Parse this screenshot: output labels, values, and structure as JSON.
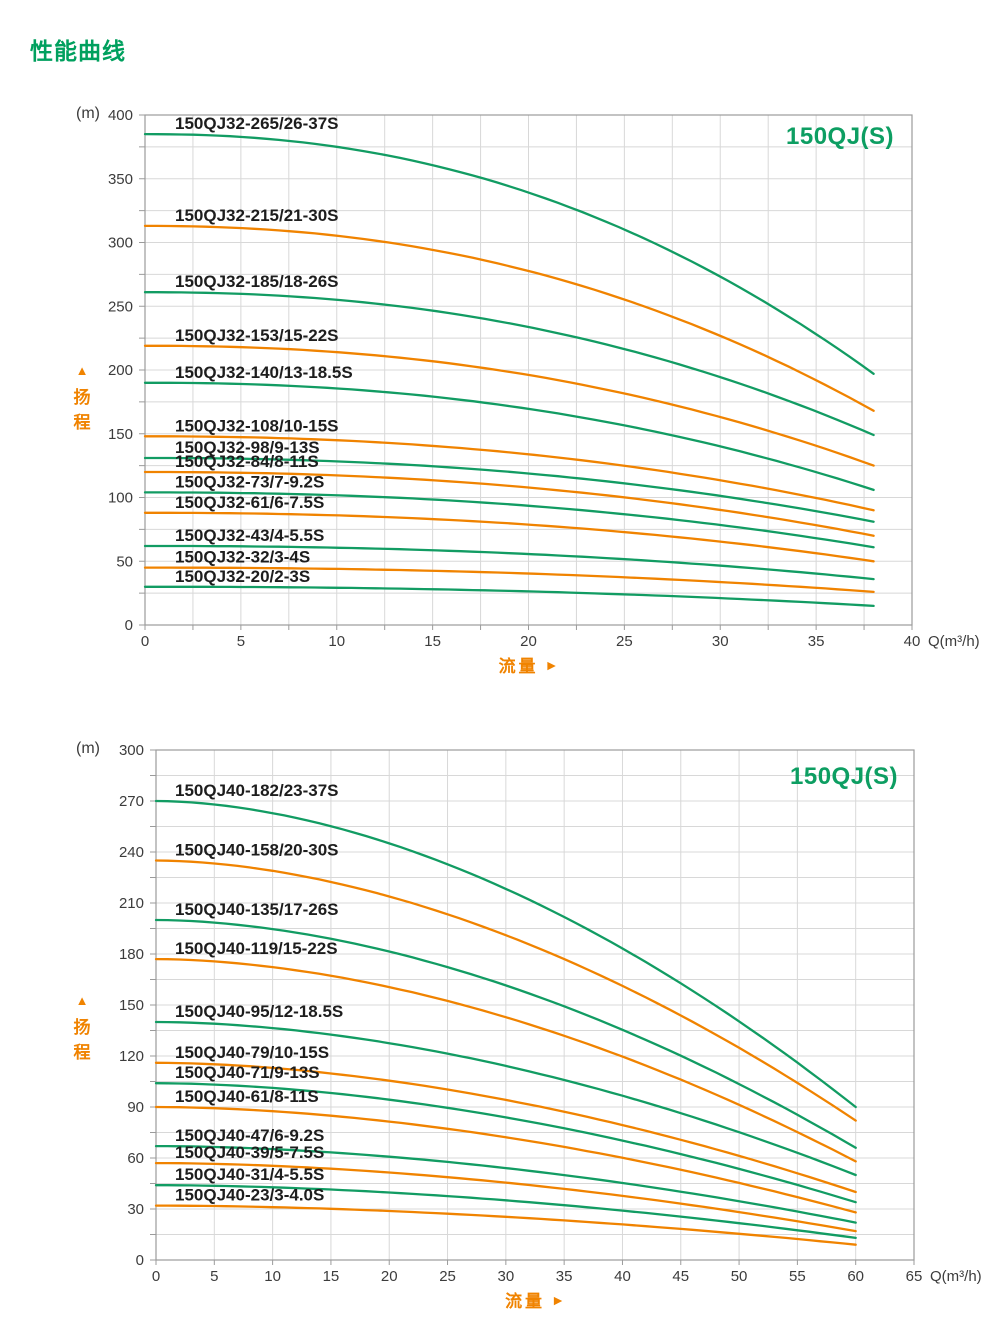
{
  "page": {
    "title": "性能曲线"
  },
  "colors": {
    "green": "#129c63",
    "orange": "#f08300",
    "grid": "#d8d8d8",
    "axis": "#9b9b9b",
    "tick_text": "#3c3c3c",
    "curve_label_text": "#1d1d1d",
    "accent_text": "#f08300",
    "title_green": "#00a05e"
  },
  "icons": {
    "up_arrow": "▲",
    "right_arrow": "►"
  },
  "chart_data": [
    {
      "type": "line",
      "series_title": "150QJ(S)",
      "y_unit": "(m)",
      "y_axis_name": "扬程",
      "x_axis_name": "流量",
      "x_unit": "Q(m³/h)",
      "xlim": [
        0,
        40
      ],
      "ylim": [
        0,
        400
      ],
      "x_ticks": [
        0,
        5,
        10,
        15,
        20,
        25,
        30,
        35,
        40
      ],
      "y_ticks": [
        0,
        50,
        100,
        150,
        200,
        250,
        300,
        350,
        400
      ],
      "x_grid_step": 2.5,
      "y_grid_step": 25,
      "grid": true,
      "q_max": 38,
      "exponent": 2.2,
      "curves": [
        {
          "label": "150QJ32-265/26-37S",
          "color": "green",
          "head_start_m": 385,
          "head_end_m": 197
        },
        {
          "label": "150QJ32-215/21-30S",
          "color": "orange",
          "head_start_m": 313,
          "head_end_m": 168
        },
        {
          "label": "150QJ32-185/18-26S",
          "color": "green",
          "head_start_m": 261,
          "head_end_m": 149
        },
        {
          "label": "150QJ32-153/15-22S",
          "color": "orange",
          "head_start_m": 219,
          "head_end_m": 125
        },
        {
          "label": "150QJ32-140/13-18.5S",
          "color": "green",
          "head_start_m": 190,
          "head_end_m": 106
        },
        {
          "label": "150QJ32-108/10-15S",
          "color": "orange",
          "head_start_m": 148,
          "head_end_m": 90
        },
        {
          "label": "150QJ32-98/9-13S",
          "color": "green",
          "head_start_m": 131,
          "head_end_m": 81
        },
        {
          "label": "150QJ32-84/8-11S",
          "color": "orange",
          "head_start_m": 120,
          "head_end_m": 70
        },
        {
          "label": "150QJ32-73/7-9.2S",
          "color": "green",
          "head_start_m": 104,
          "head_end_m": 61
        },
        {
          "label": "150QJ32-61/6-7.5S",
          "color": "orange",
          "head_start_m": 88,
          "head_end_m": 50
        },
        {
          "label": "150QJ32-43/4-5.5S",
          "color": "green",
          "head_start_m": 62,
          "head_end_m": 36
        },
        {
          "label": "150QJ32-32/3-4S",
          "color": "orange",
          "head_start_m": 45,
          "head_end_m": 26
        },
        {
          "label": "150QJ32-20/2-3S",
          "color": "green",
          "head_start_m": 30,
          "head_end_m": 15
        }
      ]
    },
    {
      "type": "line",
      "series_title": "150QJ(S)",
      "y_unit": "(m)",
      "y_axis_name": "扬程",
      "x_axis_name": "流量",
      "x_unit": "Q(m³/h)",
      "xlim": [
        0,
        65
      ],
      "ylim": [
        0,
        300
      ],
      "x_ticks": [
        0,
        5,
        10,
        15,
        20,
        25,
        30,
        35,
        40,
        45,
        50,
        55,
        60,
        65
      ],
      "y_ticks": [
        0,
        30,
        60,
        90,
        120,
        150,
        180,
        210,
        240,
        270,
        300
      ],
      "x_grid_step": 5,
      "y_grid_step": 15,
      "grid": true,
      "q_max": 60,
      "exponent": 1.8,
      "curves": [
        {
          "label": "150QJ40-182/23-37S",
          "color": "green",
          "head_start_m": 270,
          "head_end_m": 90
        },
        {
          "label": "150QJ40-158/20-30S",
          "color": "orange",
          "head_start_m": 235,
          "head_end_m": 82
        },
        {
          "label": "150QJ40-135/17-26S",
          "color": "green",
          "head_start_m": 200,
          "head_end_m": 66
        },
        {
          "label": "150QJ40-119/15-22S",
          "color": "orange",
          "head_start_m": 177,
          "head_end_m": 58
        },
        {
          "label": "150QJ40-95/12-18.5S",
          "color": "green",
          "head_start_m": 140,
          "head_end_m": 50
        },
        {
          "label": "150QJ40-79/10-15S",
          "color": "orange",
          "head_start_m": 116,
          "head_end_m": 40
        },
        {
          "label": "150QJ40-71/9-13S",
          "color": "green",
          "head_start_m": 104,
          "head_end_m": 34
        },
        {
          "label": "150QJ40-61/8-11S",
          "color": "orange",
          "head_start_m": 90,
          "head_end_m": 28
        },
        {
          "label": "150QJ40-47/6-9.2S",
          "color": "green",
          "head_start_m": 67,
          "head_end_m": 22
        },
        {
          "label": "150QJ40-39/5-7.5S",
          "color": "orange",
          "head_start_m": 57,
          "head_end_m": 17
        },
        {
          "label": "150QJ40-31/4-5.5S",
          "color": "green",
          "head_start_m": 44,
          "head_end_m": 13
        },
        {
          "label": "150QJ40-23/3-4.0S",
          "color": "orange",
          "head_start_m": 32,
          "head_end_m": 9
        }
      ]
    }
  ]
}
